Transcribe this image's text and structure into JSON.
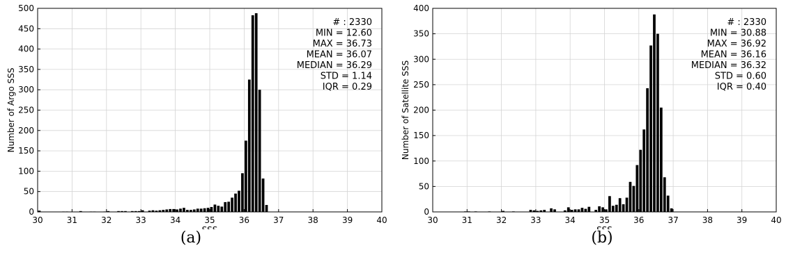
{
  "chart_data": [
    {
      "type": "bar",
      "caption": "(a)",
      "xlabel": "SSS",
      "ylabel": "Number of Argo SSS",
      "xlim": [
        30,
        40
      ],
      "ylim": [
        0,
        500
      ],
      "xticks": [
        30,
        31,
        32,
        33,
        34,
        35,
        36,
        37,
        38,
        39,
        40
      ],
      "yticks": [
        0,
        50,
        100,
        150,
        200,
        250,
        300,
        350,
        400,
        450,
        500
      ],
      "grid": true,
      "bin_width": 0.1,
      "bins": [
        [
          30.0,
          3
        ],
        [
          30.7,
          1
        ],
        [
          30.8,
          1
        ],
        [
          31.2,
          2
        ],
        [
          31.5,
          1
        ],
        [
          31.6,
          1
        ],
        [
          31.9,
          1
        ],
        [
          32.0,
          2
        ],
        [
          32.3,
          2
        ],
        [
          32.4,
          2
        ],
        [
          32.5,
          2
        ],
        [
          32.7,
          2
        ],
        [
          32.8,
          2
        ],
        [
          32.9,
          2
        ],
        [
          33.0,
          4
        ],
        [
          33.2,
          3
        ],
        [
          33.3,
          4
        ],
        [
          33.4,
          3
        ],
        [
          33.5,
          4
        ],
        [
          33.6,
          5
        ],
        [
          33.7,
          6
        ],
        [
          33.8,
          7
        ],
        [
          33.9,
          7
        ],
        [
          34.0,
          6
        ],
        [
          34.1,
          8
        ],
        [
          34.2,
          10
        ],
        [
          34.3,
          5
        ],
        [
          34.4,
          5
        ],
        [
          34.5,
          6
        ],
        [
          34.6,
          8
        ],
        [
          34.7,
          8
        ],
        [
          34.8,
          9
        ],
        [
          34.9,
          10
        ],
        [
          35.0,
          12
        ],
        [
          35.1,
          18
        ],
        [
          35.2,
          15
        ],
        [
          35.3,
          13
        ],
        [
          35.4,
          24
        ],
        [
          35.5,
          25
        ],
        [
          35.6,
          35
        ],
        [
          35.7,
          45
        ],
        [
          35.8,
          52
        ],
        [
          35.9,
          95
        ],
        [
          36.0,
          175
        ],
        [
          36.1,
          325
        ],
        [
          36.2,
          483
        ],
        [
          36.3,
          488
        ],
        [
          36.4,
          300
        ],
        [
          36.5,
          82
        ],
        [
          36.6,
          17
        ]
      ],
      "stats": [
        {
          "label": "# : 2330"
        },
        {
          "label": "MIN = 12.60"
        },
        {
          "label": "MAX =  36.73"
        },
        {
          "label": "MEAN = 36.07"
        },
        {
          "label": "MEDIAN = 36.29"
        },
        {
          "label": "STD = 1.14"
        },
        {
          "label": "IQR = 0.29"
        }
      ]
    },
    {
      "type": "bar",
      "caption": "(b)",
      "xlabel": "SSS",
      "ylabel": "Number of Satellite SSS",
      "xlim": [
        30,
        40
      ],
      "ylim": [
        0,
        400
      ],
      "xticks": [
        30,
        31,
        32,
        33,
        34,
        35,
        36,
        37,
        38,
        39,
        40
      ],
      "yticks": [
        0,
        50,
        100,
        150,
        200,
        250,
        300,
        350,
        400
      ],
      "grid": true,
      "bin_width": 0.1,
      "bins": [
        [
          30.9,
          1
        ],
        [
          31.0,
          1
        ],
        [
          31.2,
          1
        ],
        [
          31.6,
          1
        ],
        [
          32.0,
          2
        ],
        [
          32.3,
          1
        ],
        [
          32.8,
          4
        ],
        [
          32.9,
          3
        ],
        [
          33.0,
          2
        ],
        [
          33.1,
          3
        ],
        [
          33.2,
          4
        ],
        [
          33.4,
          7
        ],
        [
          33.5,
          5
        ],
        [
          33.8,
          3
        ],
        [
          33.9,
          9
        ],
        [
          34.0,
          4
        ],
        [
          34.1,
          5
        ],
        [
          34.2,
          5
        ],
        [
          34.3,
          8
        ],
        [
          34.4,
          6
        ],
        [
          34.5,
          10
        ],
        [
          34.7,
          4
        ],
        [
          34.8,
          11
        ],
        [
          34.9,
          9
        ],
        [
          35.0,
          5
        ],
        [
          35.1,
          31
        ],
        [
          35.2,
          12
        ],
        [
          35.3,
          14
        ],
        [
          35.4,
          27
        ],
        [
          35.5,
          15
        ],
        [
          35.6,
          28
        ],
        [
          35.7,
          59
        ],
        [
          35.8,
          51
        ],
        [
          35.9,
          92
        ],
        [
          36.0,
          122
        ],
        [
          36.1,
          162
        ],
        [
          36.2,
          243
        ],
        [
          36.3,
          327
        ],
        [
          36.4,
          388
        ],
        [
          36.5,
          350
        ],
        [
          36.6,
          205
        ],
        [
          36.7,
          68
        ],
        [
          36.8,
          32
        ],
        [
          36.9,
          7
        ]
      ],
      "stats": [
        {
          "label": "# : 2330"
        },
        {
          "label": "MIN = 30.88"
        },
        {
          "label": "MAX =  36.92"
        },
        {
          "label": "MEAN = 36.16"
        },
        {
          "label": "MEDIAN = 36.32"
        },
        {
          "label": "STD = 0.60"
        },
        {
          "label": "IQR = 0.40"
        }
      ]
    }
  ]
}
